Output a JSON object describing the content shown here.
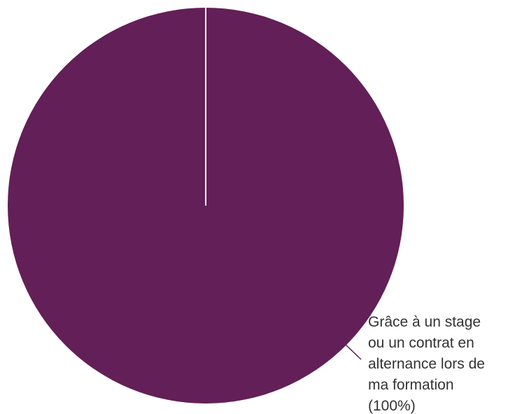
{
  "chart_data": {
    "type": "pie",
    "slices": [
      {
        "label_lines": [
          "Grâce à un stage",
          "ou un contrat en",
          "alternance lors de",
          "ma formation",
          "(100%)"
        ],
        "value": 100,
        "color": "#631f57"
      }
    ]
  },
  "colors": {
    "background": "#ffffff",
    "slice_border": "#ffffff",
    "label_text": "#333333",
    "leader_line": "#631f57"
  }
}
